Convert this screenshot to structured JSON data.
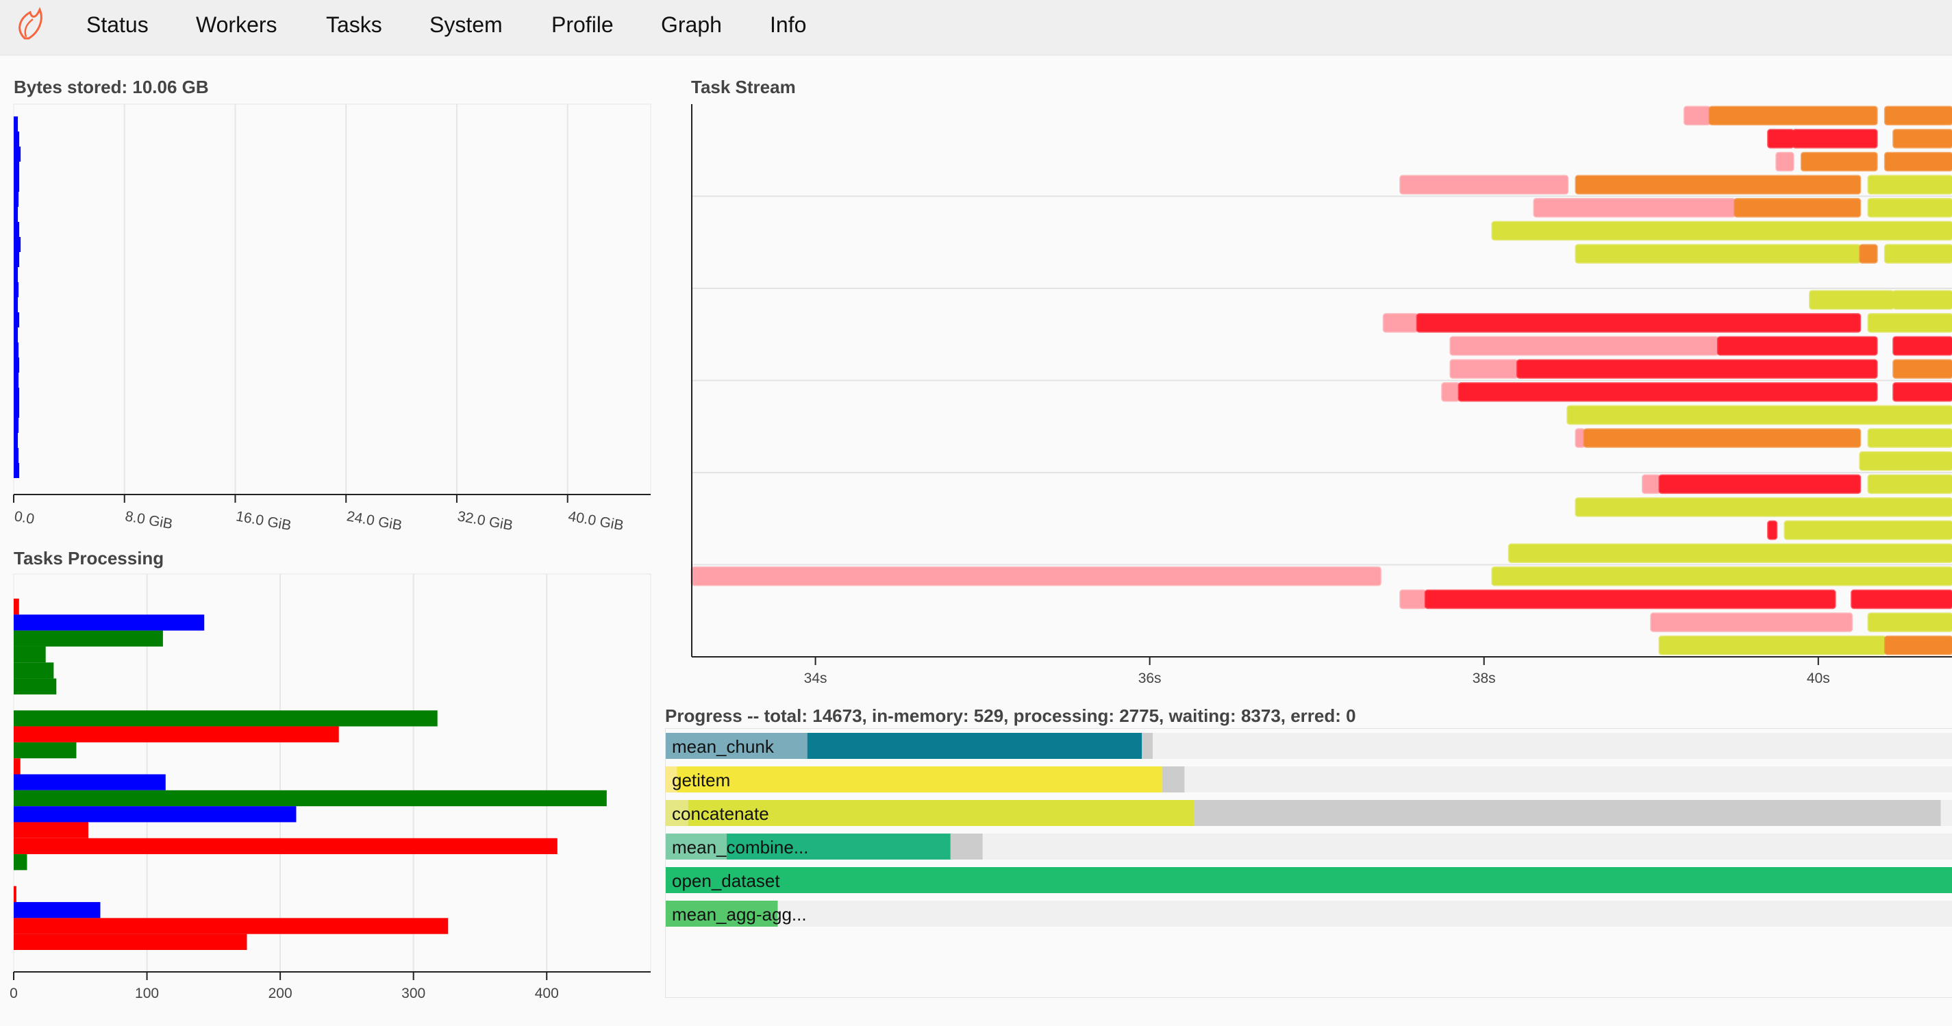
{
  "nav": {
    "items": [
      "Status",
      "Workers",
      "Tasks",
      "System",
      "Profile",
      "Graph",
      "Info"
    ],
    "logo_icon": "dask-flame-icon"
  },
  "bytes_stored": {
    "title": "Bytes stored: 10.06 GB",
    "chart_data": {
      "type": "bar",
      "orientation": "horizontal",
      "x_ticks": [
        "0.0",
        "8.0 GiB",
        "16.0 GiB",
        "24.0 GiB",
        "32.0 GiB",
        "40.0 GiB"
      ],
      "xlim_gib": [
        0,
        46
      ],
      "color": "#0000ff",
      "values_gib": [
        0.3,
        0.4,
        0.5,
        0.4,
        0.4,
        0.35,
        0.3,
        0.4,
        0.5,
        0.4,
        0.3,
        0.35,
        0.3,
        0.4,
        0.3,
        0.35,
        0.4,
        0.35,
        0.4,
        0.4,
        0.35,
        0.3,
        0.35,
        0.4
      ]
    }
  },
  "tasks_processing": {
    "title": "Tasks Processing",
    "chart_data": {
      "type": "bar",
      "orientation": "horizontal",
      "x_ticks": [
        "0",
        "100",
        "200",
        "300",
        "400"
      ],
      "xlim": [
        0,
        478
      ],
      "colors": {
        "red": "#ff0000",
        "blue": "#0000ff",
        "green": "#007f00"
      },
      "bars": [
        {
          "value": 4,
          "color": "red"
        },
        {
          "value": 143,
          "color": "blue"
        },
        {
          "value": 112,
          "color": "green"
        },
        {
          "value": 24,
          "color": "green"
        },
        {
          "value": 30,
          "color": "green"
        },
        {
          "value": 32,
          "color": "green"
        },
        {
          "value": 0,
          "color": "green"
        },
        {
          "value": 318,
          "color": "green"
        },
        {
          "value": 244,
          "color": "red"
        },
        {
          "value": 47,
          "color": "green"
        },
        {
          "value": 5,
          "color": "red"
        },
        {
          "value": 114,
          "color": "blue"
        },
        {
          "value": 445,
          "color": "green"
        },
        {
          "value": 212,
          "color": "blue"
        },
        {
          "value": 56,
          "color": "red"
        },
        {
          "value": 408,
          "color": "red"
        },
        {
          "value": 10,
          "color": "green"
        },
        {
          "value": 0,
          "color": "red"
        },
        {
          "value": 2,
          "color": "red"
        },
        {
          "value": 65,
          "color": "blue"
        },
        {
          "value": 326,
          "color": "red"
        },
        {
          "value": 175,
          "color": "red"
        }
      ]
    }
  },
  "task_stream": {
    "title": "Task Stream",
    "chart_data": {
      "type": "gantt",
      "x_ticks": [
        "34s",
        "36s",
        "38s",
        "40s"
      ],
      "tick_seconds": [
        34,
        36,
        38,
        40
      ],
      "xlim_s": [
        33.26,
        40.8
      ],
      "rows": 24,
      "colors": {
        "red": "#ff1e2d",
        "pink": "#ff9fa7",
        "orange": "#f2872c",
        "yellow": "#d8e03c",
        "green": "#6aa84f"
      },
      "tasks": [
        {
          "row": 0,
          "start": 39.2,
          "end": 39.35,
          "color": "pink"
        },
        {
          "row": 0,
          "start": 39.35,
          "end": 40.35,
          "color": "orange"
        },
        {
          "row": 0,
          "start": 40.4,
          "end": 40.8,
          "color": "orange"
        },
        {
          "row": 1,
          "start": 39.7,
          "end": 39.85,
          "color": "red"
        },
        {
          "row": 1,
          "start": 39.85,
          "end": 40.35,
          "color": "red"
        },
        {
          "row": 1,
          "start": 40.45,
          "end": 40.8,
          "color": "orange"
        },
        {
          "row": 2,
          "start": 39.75,
          "end": 39.85,
          "color": "pink"
        },
        {
          "row": 2,
          "start": 39.9,
          "end": 40.35,
          "color": "orange"
        },
        {
          "row": 2,
          "start": 40.4,
          "end": 40.8,
          "color": "orange"
        },
        {
          "row": 3,
          "start": 37.5,
          "end": 38.5,
          "color": "pink"
        },
        {
          "row": 3,
          "start": 38.55,
          "end": 40.25,
          "color": "orange"
        },
        {
          "row": 3,
          "start": 40.3,
          "end": 40.8,
          "color": "yellow"
        },
        {
          "row": 4,
          "start": 38.3,
          "end": 39.5,
          "color": "pink"
        },
        {
          "row": 4,
          "start": 39.5,
          "end": 40.25,
          "color": "orange"
        },
        {
          "row": 4,
          "start": 40.3,
          "end": 40.8,
          "color": "yellow"
        },
        {
          "row": 5,
          "start": 38.05,
          "end": 40.8,
          "color": "yellow"
        },
        {
          "row": 6,
          "start": 38.55,
          "end": 40.25,
          "color": "yellow"
        },
        {
          "row": 6,
          "start": 40.25,
          "end": 40.35,
          "color": "orange"
        },
        {
          "row": 6,
          "start": 40.4,
          "end": 40.8,
          "color": "yellow"
        },
        {
          "row": 8,
          "start": 39.95,
          "end": 40.45,
          "color": "yellow"
        },
        {
          "row": 8,
          "start": 40.45,
          "end": 40.8,
          "color": "yellow"
        },
        {
          "row": 9,
          "start": 37.4,
          "end": 37.6,
          "color": "pink"
        },
        {
          "row": 9,
          "start": 37.6,
          "end": 40.25,
          "color": "red"
        },
        {
          "row": 9,
          "start": 40.3,
          "end": 40.8,
          "color": "yellow"
        },
        {
          "row": 10,
          "start": 37.8,
          "end": 39.4,
          "color": "pink"
        },
        {
          "row": 10,
          "start": 39.4,
          "end": 40.35,
          "color": "red"
        },
        {
          "row": 10,
          "start": 40.45,
          "end": 40.8,
          "color": "red"
        },
        {
          "row": 11,
          "start": 37.8,
          "end": 38.2,
          "color": "pink"
        },
        {
          "row": 11,
          "start": 38.2,
          "end": 40.35,
          "color": "red"
        },
        {
          "row": 11,
          "start": 40.45,
          "end": 40.8,
          "color": "orange"
        },
        {
          "row": 12,
          "start": 37.75,
          "end": 37.85,
          "color": "pink"
        },
        {
          "row": 12,
          "start": 37.85,
          "end": 40.35,
          "color": "red"
        },
        {
          "row": 12,
          "start": 40.45,
          "end": 40.8,
          "color": "red"
        },
        {
          "row": 13,
          "start": 38.5,
          "end": 40.8,
          "color": "yellow"
        },
        {
          "row": 14,
          "start": 38.55,
          "end": 38.6,
          "color": "pink"
        },
        {
          "row": 14,
          "start": 38.6,
          "end": 40.25,
          "color": "orange"
        },
        {
          "row": 14,
          "start": 40.3,
          "end": 40.8,
          "color": "yellow"
        },
        {
          "row": 15,
          "start": 40.25,
          "end": 40.8,
          "color": "yellow"
        },
        {
          "row": 16,
          "start": 38.95,
          "end": 39.05,
          "color": "pink"
        },
        {
          "row": 16,
          "start": 39.05,
          "end": 40.25,
          "color": "red"
        },
        {
          "row": 16,
          "start": 40.3,
          "end": 40.8,
          "color": "yellow"
        },
        {
          "row": 17,
          "start": 38.55,
          "end": 40.8,
          "color": "yellow"
        },
        {
          "row": 18,
          "start": 39.7,
          "end": 39.75,
          "color": "red"
        },
        {
          "row": 18,
          "start": 39.8,
          "end": 40.8,
          "color": "yellow"
        },
        {
          "row": 19,
          "start": 38.15,
          "end": 40.8,
          "color": "yellow"
        },
        {
          "row": 20,
          "start": 33.26,
          "end": 37.38,
          "color": "pink"
        },
        {
          "row": 20,
          "start": 38.05,
          "end": 40.8,
          "color": "yellow"
        },
        {
          "row": 21,
          "start": 37.5,
          "end": 37.65,
          "color": "pink"
        },
        {
          "row": 21,
          "start": 37.65,
          "end": 40.1,
          "color": "red"
        },
        {
          "row": 21,
          "start": 40.2,
          "end": 40.8,
          "color": "red"
        },
        {
          "row": 22,
          "start": 39.0,
          "end": 40.2,
          "color": "pink"
        },
        {
          "row": 22,
          "start": 40.3,
          "end": 40.8,
          "color": "yellow"
        },
        {
          "row": 23,
          "start": 39.05,
          "end": 40.4,
          "color": "yellow"
        },
        {
          "row": 23,
          "start": 40.4,
          "end": 40.8,
          "color": "orange"
        }
      ]
    }
  },
  "progress": {
    "title": "Progress -- total: 14673, in-memory: 529, processing: 2775, waiting: 8373, erred: 0",
    "track_color": "#f0f0f0",
    "items": [
      {
        "name": "mean_chunk",
        "memory": 0.26,
        "released": 0.11,
        "processing": 0.0084,
        "main": "#0a7c91",
        "light": "#7aacbb"
      },
      {
        "name": "getitem",
        "memory": 0.377,
        "released": 0.0087,
        "processing": 0.0174,
        "main": "#f4e63a",
        "light": "#faea8a"
      },
      {
        "name": "concatenate",
        "memory": 0.3933,
        "released": 0.0174,
        "processing": 0.58,
        "main": "#d9e13a",
        "light": "#e5e882"
      },
      {
        "name": "mean_combine...",
        "memory": 0.174,
        "released": 0.0473,
        "processing": 0.0249,
        "main": "#1fb47f",
        "light": "#7ecba7"
      },
      {
        "name": "open_dataset",
        "memory": 1.0,
        "released": 0.0,
        "processing": 0.0,
        "main": "#1fbe6f",
        "light": "#1fbe6f"
      },
      {
        "name": "mean_agg-agg...",
        "memory": 0.0,
        "released": 0.087,
        "processing": 0.0,
        "main": "#3fc45c",
        "light": "#56c76a"
      }
    ]
  }
}
